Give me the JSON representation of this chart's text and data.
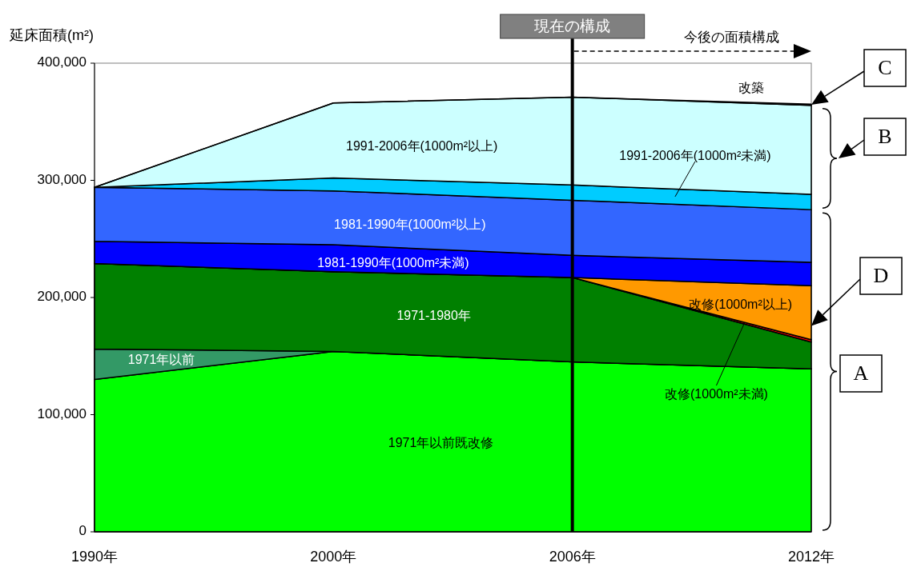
{
  "chart_data": {
    "type": "area",
    "stacked": true,
    "ylabel": "延床面積(m²)",
    "categories": [
      "1990年",
      "2000年",
      "2006年",
      "2012年"
    ],
    "ylim": [
      0,
      400000
    ],
    "yticks": [
      0,
      {
        "value": 100000,
        "label": "100,000"
      },
      {
        "value": 200000,
        "label": "200,000"
      },
      {
        "value": 300000,
        "label": "300,000"
      },
      {
        "value": 400000,
        "label": "400,000"
      }
    ],
    "grid": false,
    "series": [
      {
        "name": "1971年以前既改修",
        "color": "#00ff00",
        "values": [
          130000,
          154000,
          145000,
          139000
        ]
      },
      {
        "name": "1971年以前",
        "color": "#339966",
        "values": [
          26000,
          0,
          0,
          0
        ]
      },
      {
        "name": "1971-1980年",
        "color": "#008000",
        "values": [
          73000,
          68000,
          72000,
          23000
        ]
      },
      {
        "name": "改修(1000m²未満)",
        "color": "#ff0000",
        "values": [
          0,
          0,
          0,
          2000
        ]
      },
      {
        "name": "改修(1000m²以上)",
        "color": "#ff9900",
        "values": [
          0,
          0,
          0,
          46000
        ]
      },
      {
        "name": "1981-1990年(1000m²未満)",
        "color": "#0000ff",
        "values": [
          19000,
          23000,
          19000,
          20000
        ]
      },
      {
        "name": "1981-1990年(1000m²以上)",
        "color": "#3366ff",
        "values": [
          46000,
          46000,
          47000,
          45000
        ]
      },
      {
        "name": "1991-2006年(1000m²未満)",
        "color": "#00ccff",
        "values": [
          0,
          11000,
          13000,
          13000
        ]
      },
      {
        "name": "1991-2006年(1000m²以上)",
        "color": "#ccffff",
        "values": [
          0,
          64000,
          75000,
          76000
        ]
      },
      {
        "name": "改築",
        "color": "#333399",
        "values": [
          0,
          0,
          0,
          1000
        ]
      }
    ],
    "ref_lines": [
      {
        "axis": "x",
        "value": "2006年",
        "label": "現在の構成",
        "color": "#000000"
      }
    ],
    "annotations": [
      "今後の面積構成",
      "C",
      "B",
      "D",
      "A"
    ]
  }
}
